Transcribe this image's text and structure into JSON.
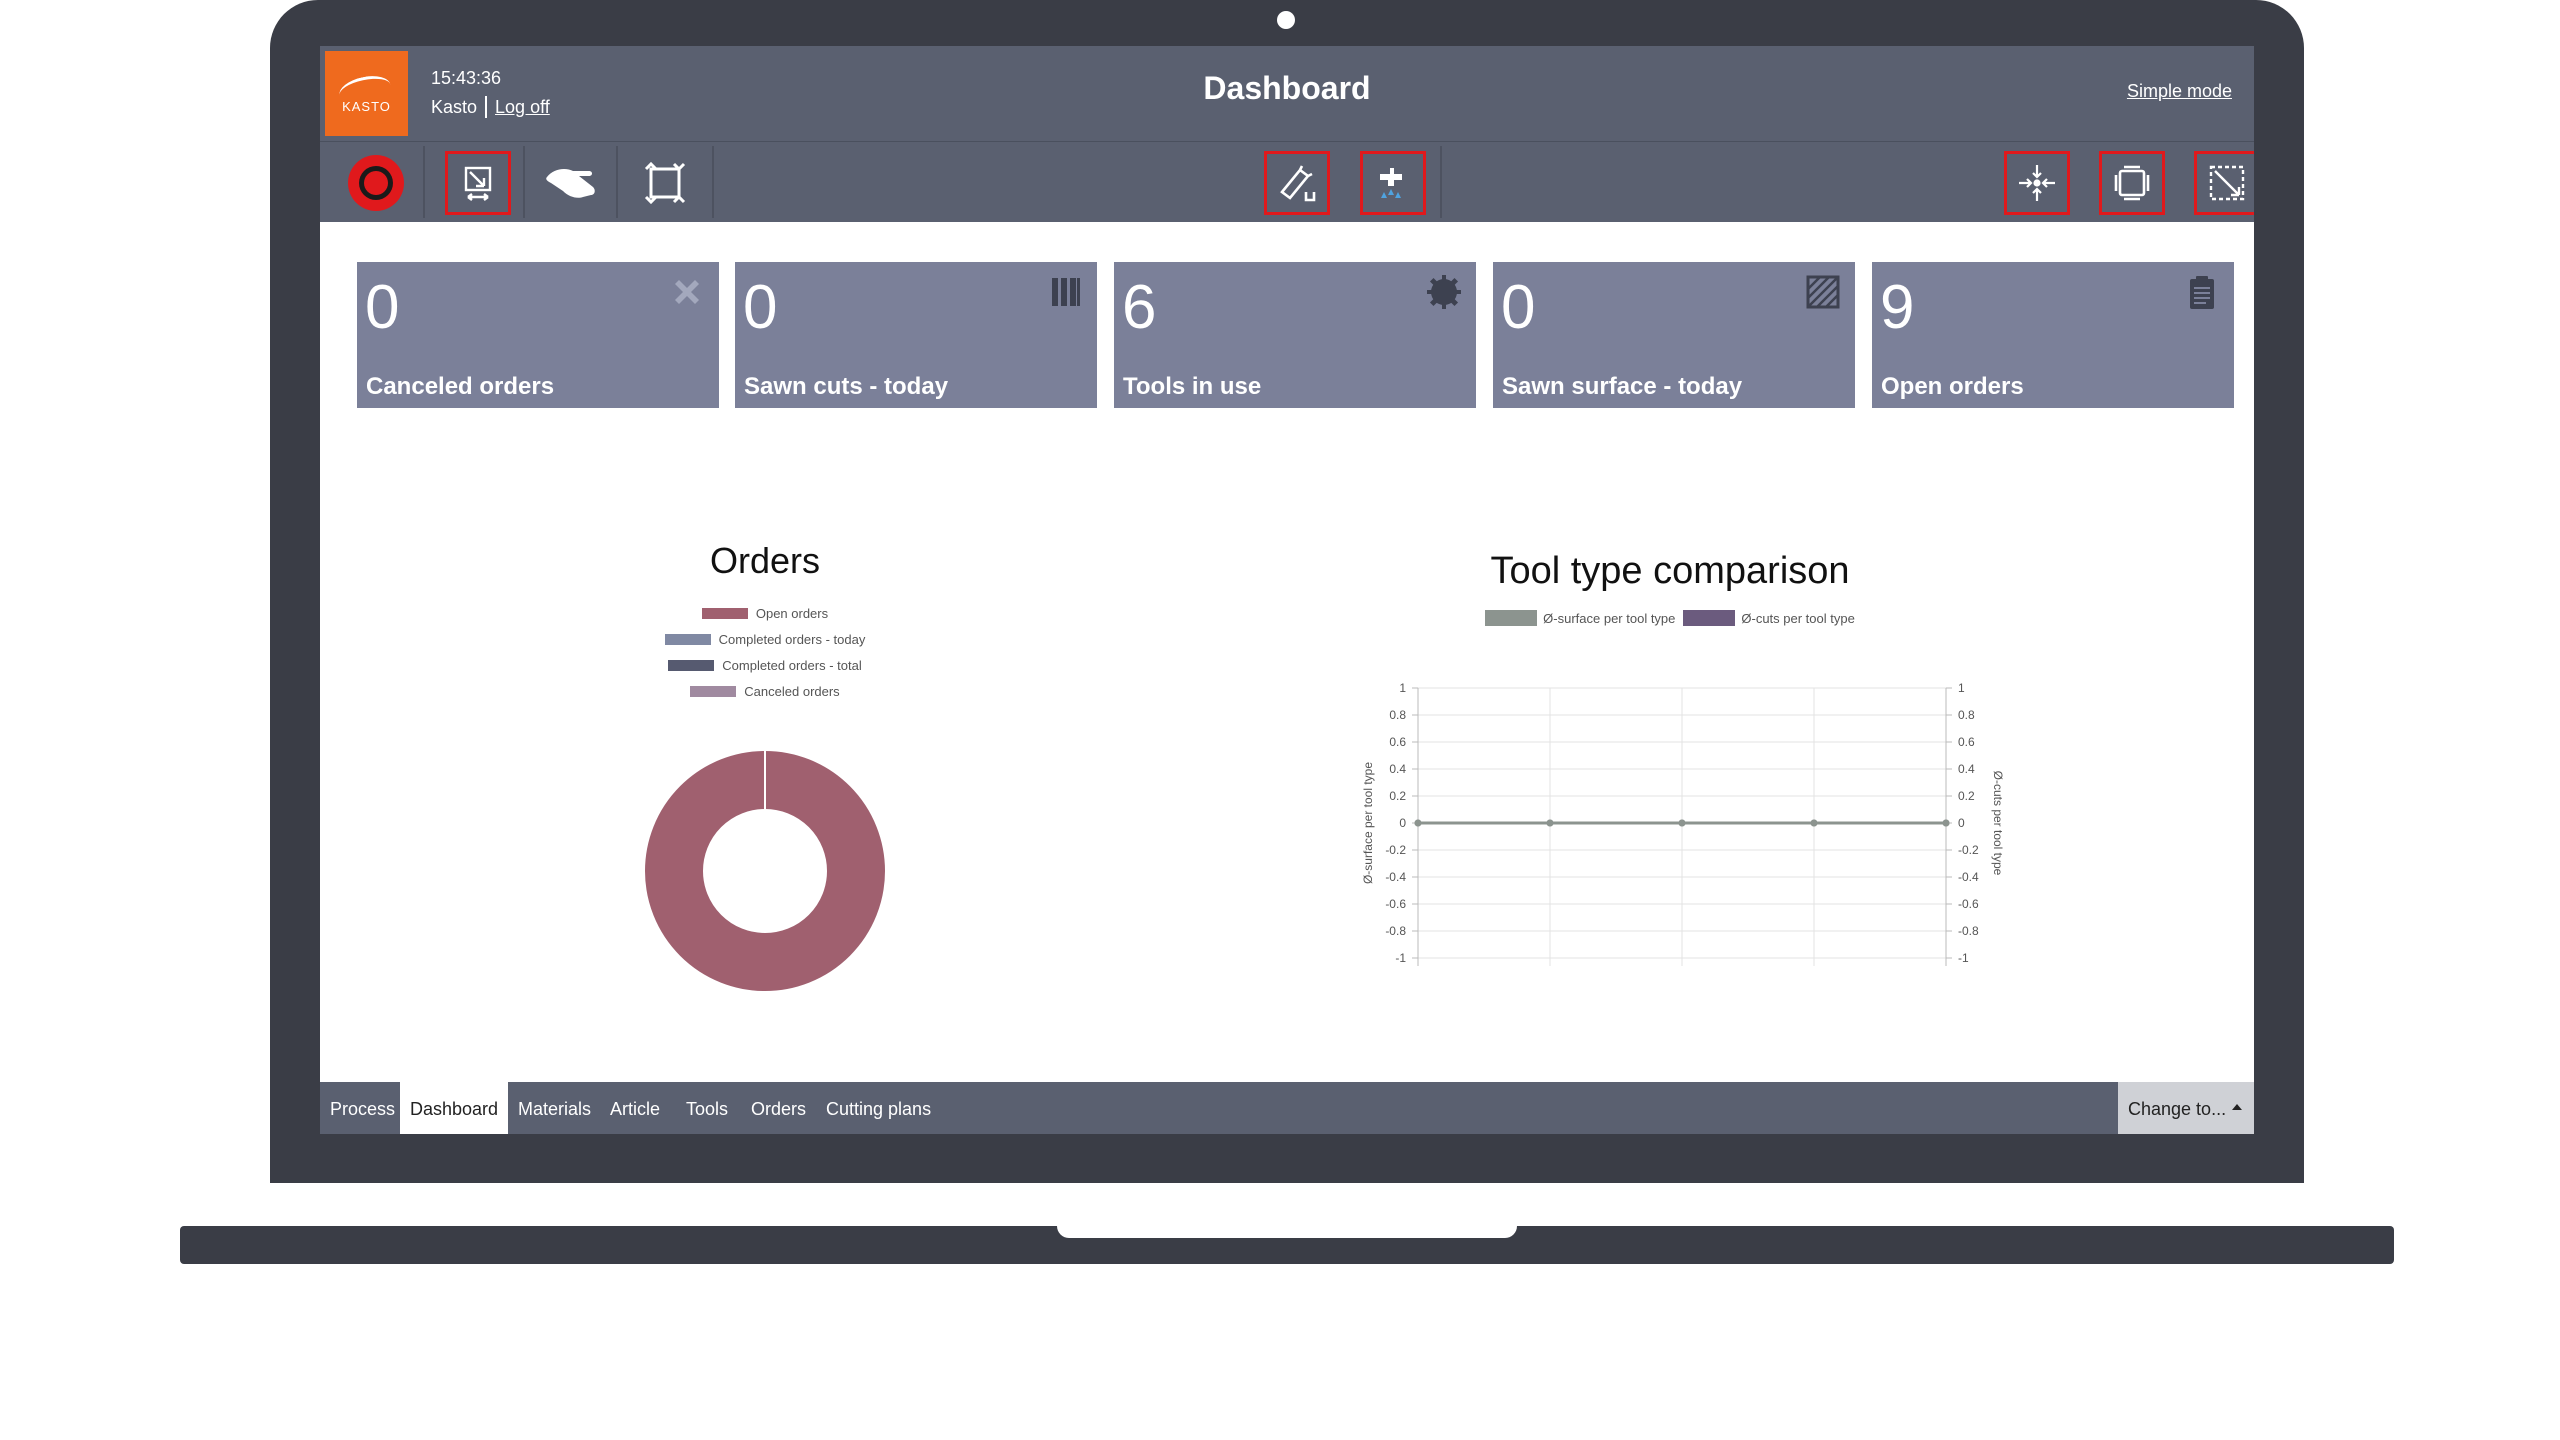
{
  "header": {
    "logo_text": "KASTO",
    "time": "15:43:36",
    "user": "Kasto",
    "logoff_label": "Log off",
    "title": "Dashboard",
    "simple_mode_label": "Simple mode"
  },
  "toolbar": {
    "left": [
      {
        "icon": "record-icon",
        "framed": false
      },
      {
        "icon": "board-arrow-icon",
        "framed": true
      },
      {
        "icon": "hand-icon",
        "framed": false
      },
      {
        "icon": "frame-arrows-icon",
        "framed": false
      }
    ],
    "center": [
      {
        "icon": "saw-icon",
        "framed": true
      },
      {
        "icon": "coolant-icon",
        "framed": true
      }
    ],
    "right": [
      {
        "icon": "center-arrows-icon",
        "framed": true
      },
      {
        "icon": "rotate-frame-icon",
        "framed": true
      },
      {
        "icon": "diagonal-frame-icon",
        "framed": true
      }
    ]
  },
  "tiles": [
    {
      "value": "0",
      "label": "Canceled orders",
      "icon": "cancel-icon"
    },
    {
      "value": "0",
      "label": "Sawn cuts - today",
      "icon": "bars-icon"
    },
    {
      "value": "6",
      "label": "Tools in use",
      "icon": "saw-blade-icon"
    },
    {
      "value": "0",
      "label": "Sawn surface - today",
      "icon": "hatched-square-icon"
    },
    {
      "value": "9",
      "label": "Open orders",
      "icon": "clipboard-icon"
    }
  ],
  "orders_chart": {
    "title": "Orders",
    "legend": [
      {
        "label": "Open orders",
        "color": "#a0606f"
      },
      {
        "label": "Completed orders - today",
        "color": "#8089a3"
      },
      {
        "label": "Completed orders - total",
        "color": "#565a70"
      },
      {
        "label": "Canceled orders",
        "color": "#a08aa0"
      }
    ]
  },
  "tool_chart": {
    "title": "Tool type comparison",
    "legend": [
      {
        "label": "Ø-surface per tool type",
        "color": "#8c948f"
      },
      {
        "label": "Ø-cuts per tool type",
        "color": "#6b5b7e"
      }
    ],
    "ylabel_left": "Ø-surface per tool type",
    "ylabel_right": "Ø-cuts per tool type"
  },
  "chart_data": [
    {
      "type": "pie",
      "title": "Orders",
      "categories": [
        "Open orders",
        "Completed orders - today",
        "Completed orders - total",
        "Canceled orders"
      ],
      "values": [
        9,
        0,
        0,
        0
      ],
      "colors": [
        "#a0606f",
        "#8089a3",
        "#565a70",
        "#a08aa0"
      ],
      "legend_position": "top"
    },
    {
      "type": "line",
      "title": "Tool type comparison",
      "x": [
        0,
        1,
        2,
        3,
        4
      ],
      "series": [
        {
          "name": "Ø-surface per tool type",
          "values": [
            0,
            0,
            0,
            0,
            0
          ]
        },
        {
          "name": "Ø-cuts per tool type",
          "values": [
            0,
            0,
            0,
            0,
            0
          ]
        }
      ],
      "ylabel": "Ø-surface per tool type",
      "y2label": "Ø-cuts per tool type",
      "ylim": [
        -1,
        1
      ],
      "y2lim": [
        -1,
        1
      ],
      "yticks": [
        "1",
        "0.8",
        "0.6",
        "0.4",
        "0.2",
        "0",
        "-0.2",
        "-0.4",
        "-0.6",
        "-0.8",
        "-1"
      ],
      "grid": true,
      "legend_position": "top"
    }
  ],
  "bottom_tabs": [
    {
      "label": "Process",
      "active": false
    },
    {
      "label": "Dashboard",
      "active": true
    },
    {
      "label": "Materials",
      "active": false
    },
    {
      "label": "Article",
      "active": false
    },
    {
      "label": "Tools",
      "active": false
    },
    {
      "label": "Orders",
      "active": false
    },
    {
      "label": "Cutting plans",
      "active": false
    }
  ],
  "change_to_label": "Change to..."
}
